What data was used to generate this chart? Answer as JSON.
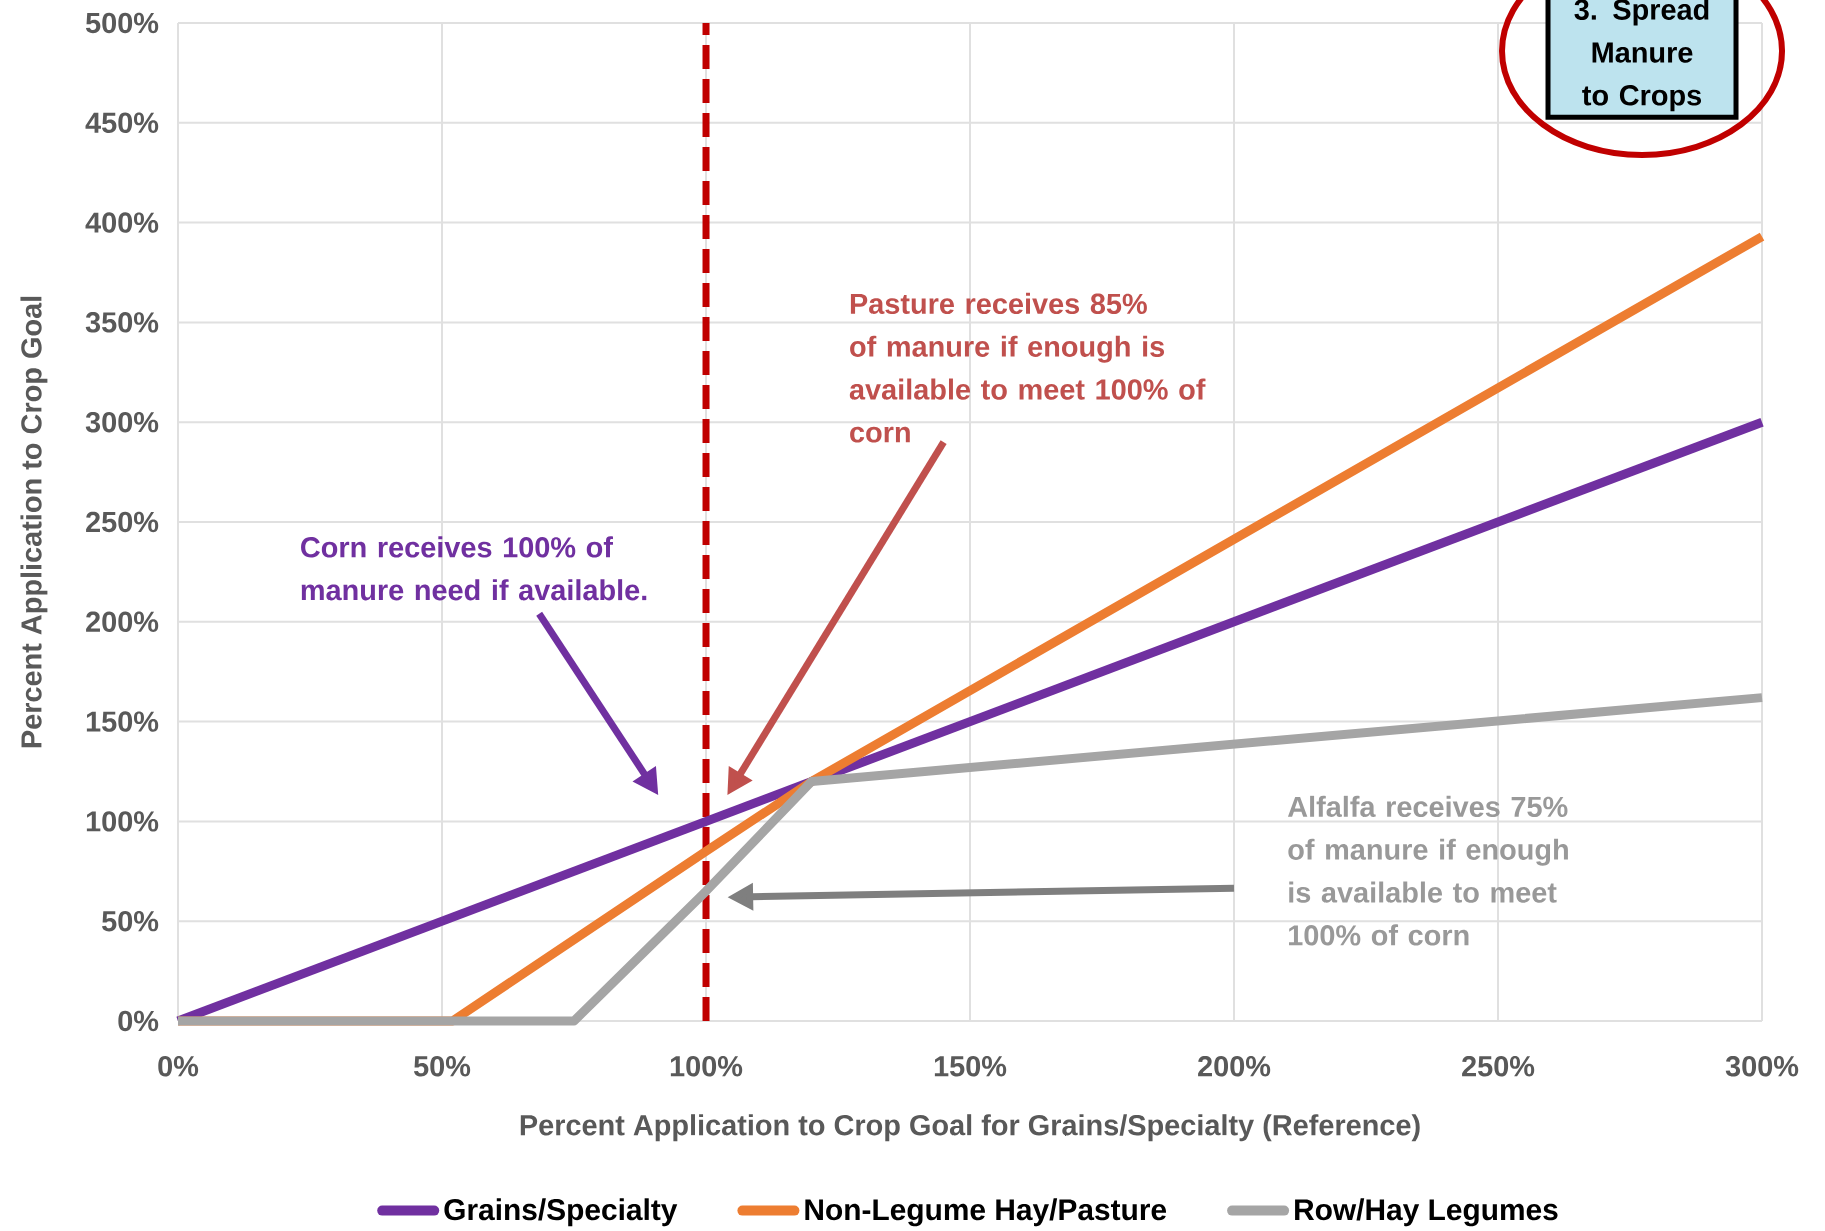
{
  "chart_data": {
    "type": "line",
    "xlabel": "Percent Application to Crop Goal for Grains/Specialty (Reference)",
    "ylabel": "Percent Application to Crop Goal",
    "xlim": [
      0,
      300
    ],
    "ylim": [
      0,
      500
    ],
    "xticks": [
      {
        "value": 0,
        "label": "0%"
      },
      {
        "value": 50,
        "label": "50%"
      },
      {
        "value": 100,
        "label": "100%"
      },
      {
        "value": 150,
        "label": "150%"
      },
      {
        "value": 200,
        "label": "200%"
      },
      {
        "value": 250,
        "label": "250%"
      },
      {
        "value": 300,
        "label": "300%"
      }
    ],
    "yticks": [
      {
        "value": 0,
        "label": "0%"
      },
      {
        "value": 50,
        "label": "50%"
      },
      {
        "value": 100,
        "label": "100%"
      },
      {
        "value": 150,
        "label": "150%"
      },
      {
        "value": 200,
        "label": "200%"
      },
      {
        "value": 250,
        "label": "250%"
      },
      {
        "value": 300,
        "label": "300%"
      },
      {
        "value": 350,
        "label": "350%"
      },
      {
        "value": 400,
        "label": "400%"
      },
      {
        "value": 450,
        "label": "450%"
      },
      {
        "value": 500,
        "label": "500%"
      }
    ],
    "grid": true,
    "legend": "bottom",
    "series": [
      {
        "name": "Grains/Specialty",
        "color": "#7030a0",
        "x": [
          0,
          300
        ],
        "values": [
          0,
          300
        ]
      },
      {
        "name": "Non-Legume Hay/Pasture",
        "color": "#ed7d31",
        "x": [
          0,
          52,
          100,
          120,
          300
        ],
        "values": [
          0,
          0,
          85,
          120,
          393
        ]
      },
      {
        "name": "Row/Hay Legumes",
        "color": "#a5a5a5",
        "x": [
          0,
          75,
          100,
          120,
          300
        ],
        "values": [
          0,
          0,
          65,
          120,
          162
        ]
      }
    ],
    "ref_lines": [
      {
        "axis": "x",
        "value": 100,
        "color": "#c00000",
        "line_style": "dashed"
      }
    ],
    "annotations": [
      "Corn receives 100% of manure need if available.",
      "Pasture receives 85% of manure if enough is available to meet 100% of corn",
      "Alfalfa receives 75% of manure if enough is available to meet 100% of corn",
      "3. Spread Manure to Crops"
    ]
  }
}
